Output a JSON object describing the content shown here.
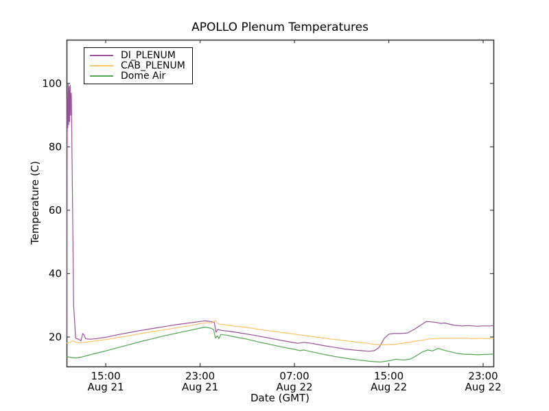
{
  "chart_data": {
    "type": "line",
    "title": "APOLLO Plenum Temperatures",
    "xlabel": "Date (GMT)",
    "ylabel": "Temperature (C)",
    "grid": false,
    "legend_position": "upper left",
    "x_unit": "hours since Aug 21 00:00 GMT",
    "xlim": [
      11.68,
      47.87
    ],
    "ylim": [
      10.7,
      113.8
    ],
    "y_ticks": [
      20,
      40,
      60,
      80,
      100
    ],
    "x_ticks": [
      {
        "t": 15,
        "time": "15:00",
        "date": "Aug 21"
      },
      {
        "t": 23,
        "time": "23:00",
        "date": "Aug 21"
      },
      {
        "t": 31,
        "time": "07:00",
        "date": "Aug 22"
      },
      {
        "t": 39,
        "time": "15:00",
        "date": "Aug 22"
      },
      {
        "t": 47,
        "time": "23:00",
        "date": "Aug 22"
      }
    ],
    "series": [
      {
        "name": "DI_PLENUM",
        "color": "#9b4f9b",
        "points": [
          [
            11.7,
            20.3
          ],
          [
            11.74,
            95.0
          ],
          [
            11.78,
            86.0
          ],
          [
            11.82,
            99.7
          ],
          [
            11.86,
            87.0
          ],
          [
            11.9,
            99.0
          ],
          [
            11.94,
            88.0
          ],
          [
            11.99,
            99.5
          ],
          [
            12.04,
            90.0
          ],
          [
            12.08,
            97.0
          ],
          [
            12.12,
            84.0
          ],
          [
            12.28,
            30.0
          ],
          [
            12.45,
            19.6
          ],
          [
            12.7,
            19.3
          ],
          [
            12.9,
            18.8
          ],
          [
            13.05,
            21.1
          ],
          [
            13.15,
            20.7
          ],
          [
            13.3,
            19.4
          ],
          [
            13.7,
            19.3
          ],
          [
            14.2,
            19.5
          ],
          [
            15.0,
            19.9
          ],
          [
            16.0,
            20.7
          ],
          [
            17.0,
            21.4
          ],
          [
            18.0,
            22.1
          ],
          [
            19.0,
            22.7
          ],
          [
            20.0,
            23.3
          ],
          [
            21.0,
            23.9
          ],
          [
            22.0,
            24.4
          ],
          [
            23.0,
            24.9
          ],
          [
            23.4,
            25.1
          ],
          [
            23.9,
            24.9
          ],
          [
            24.2,
            24.6
          ],
          [
            24.35,
            21.5
          ],
          [
            24.5,
            22.4
          ],
          [
            24.8,
            22.1
          ],
          [
            25.5,
            21.8
          ],
          [
            26.5,
            21.2
          ],
          [
            27.5,
            20.6
          ],
          [
            28.5,
            19.9
          ],
          [
            29.5,
            19.2
          ],
          [
            30.5,
            18.5
          ],
          [
            31.3,
            18.0
          ],
          [
            31.8,
            18.3
          ],
          [
            32.3,
            18.1
          ],
          [
            33.3,
            17.4
          ],
          [
            34.3,
            16.8
          ],
          [
            35.3,
            16.2
          ],
          [
            36.3,
            15.8
          ],
          [
            37.3,
            15.5
          ],
          [
            37.8,
            15.7
          ],
          [
            38.2,
            16.8
          ],
          [
            38.6,
            19.5
          ],
          [
            39.0,
            20.9
          ],
          [
            39.4,
            21.1
          ],
          [
            40.0,
            21.1
          ],
          [
            40.6,
            21.3
          ],
          [
            41.2,
            22.5
          ],
          [
            41.8,
            24.0
          ],
          [
            42.2,
            24.9
          ],
          [
            42.6,
            24.8
          ],
          [
            43.0,
            24.6
          ],
          [
            43.4,
            24.3
          ],
          [
            43.8,
            24.4
          ],
          [
            44.2,
            24.0
          ],
          [
            44.6,
            23.7
          ],
          [
            45.2,
            23.5
          ],
          [
            45.8,
            23.6
          ],
          [
            46.4,
            23.4
          ],
          [
            47.0,
            23.5
          ],
          [
            47.5,
            23.5
          ],
          [
            47.87,
            23.6
          ]
        ]
      },
      {
        "name": "CAB_PLENUM",
        "color": "#ffc36b",
        "points": [
          [
            11.7,
            18.1
          ],
          [
            12.0,
            18.3
          ],
          [
            12.2,
            18.9
          ],
          [
            12.5,
            18.3
          ],
          [
            12.8,
            18.1
          ],
          [
            13.2,
            18.3
          ],
          [
            14.0,
            18.7
          ],
          [
            15.0,
            19.2
          ],
          [
            16.0,
            19.8
          ],
          [
            17.0,
            20.4
          ],
          [
            18.0,
            21.1
          ],
          [
            19.0,
            21.7
          ],
          [
            20.0,
            22.3
          ],
          [
            21.0,
            22.9
          ],
          [
            22.0,
            23.5
          ],
          [
            23.0,
            24.2
          ],
          [
            23.5,
            24.5
          ],
          [
            24.0,
            24.4
          ],
          [
            24.3,
            25.2
          ],
          [
            24.55,
            24.1
          ],
          [
            25.0,
            23.9
          ],
          [
            26.0,
            23.4
          ],
          [
            27.0,
            23.0
          ],
          [
            28.0,
            22.4
          ],
          [
            29.0,
            21.9
          ],
          [
            30.0,
            21.4
          ],
          [
            31.0,
            20.9
          ],
          [
            32.0,
            20.4
          ],
          [
            33.0,
            19.9
          ],
          [
            34.0,
            19.4
          ],
          [
            35.0,
            19.0
          ],
          [
            36.0,
            18.5
          ],
          [
            37.0,
            18.1
          ],
          [
            37.8,
            17.7
          ],
          [
            38.5,
            17.5
          ],
          [
            39.5,
            17.7
          ],
          [
            40.5,
            18.2
          ],
          [
            41.5,
            18.8
          ],
          [
            42.5,
            19.4
          ],
          [
            43.5,
            19.6
          ],
          [
            44.5,
            19.6
          ],
          [
            45.3,
            19.7
          ],
          [
            46.0,
            19.5
          ],
          [
            46.7,
            19.6
          ],
          [
            47.3,
            19.5
          ],
          [
            47.87,
            19.6
          ]
        ]
      },
      {
        "name": "Dome Air",
        "color": "#4ea64e",
        "points": [
          [
            11.7,
            13.8
          ],
          [
            12.1,
            13.5
          ],
          [
            12.5,
            13.4
          ],
          [
            13.0,
            13.7
          ],
          [
            14.0,
            14.7
          ],
          [
            15.0,
            15.6
          ],
          [
            16.0,
            16.6
          ],
          [
            17.0,
            17.6
          ],
          [
            18.0,
            18.6
          ],
          [
            19.0,
            19.5
          ],
          [
            20.0,
            20.4
          ],
          [
            21.0,
            21.2
          ],
          [
            22.0,
            22.0
          ],
          [
            23.0,
            22.8
          ],
          [
            23.4,
            23.1
          ],
          [
            23.9,
            22.8
          ],
          [
            24.15,
            22.3
          ],
          [
            24.3,
            19.6
          ],
          [
            24.45,
            20.4
          ],
          [
            24.6,
            19.5
          ],
          [
            24.75,
            20.8
          ],
          [
            25.2,
            20.6
          ],
          [
            26.0,
            20.0
          ],
          [
            27.0,
            19.3
          ],
          [
            28.0,
            18.4
          ],
          [
            29.0,
            17.6
          ],
          [
            30.0,
            16.8
          ],
          [
            31.0,
            16.1
          ],
          [
            31.5,
            15.7
          ],
          [
            31.8,
            15.9
          ],
          [
            32.5,
            15.3
          ],
          [
            33.5,
            14.5
          ],
          [
            34.5,
            13.8
          ],
          [
            35.5,
            13.2
          ],
          [
            36.5,
            12.7
          ],
          [
            37.5,
            12.3
          ],
          [
            38.3,
            12.1
          ],
          [
            39.0,
            12.5
          ],
          [
            39.6,
            13.0
          ],
          [
            40.2,
            12.7
          ],
          [
            40.8,
            13.0
          ],
          [
            41.3,
            14.0
          ],
          [
            41.8,
            15.2
          ],
          [
            42.3,
            15.9
          ],
          [
            42.7,
            15.6
          ],
          [
            43.2,
            16.4
          ],
          [
            43.7,
            15.8
          ],
          [
            44.2,
            15.4
          ],
          [
            44.7,
            14.9
          ],
          [
            45.3,
            14.6
          ],
          [
            46.0,
            14.5
          ],
          [
            46.6,
            14.4
          ],
          [
            47.2,
            14.5
          ],
          [
            47.87,
            14.6
          ]
        ]
      }
    ]
  }
}
